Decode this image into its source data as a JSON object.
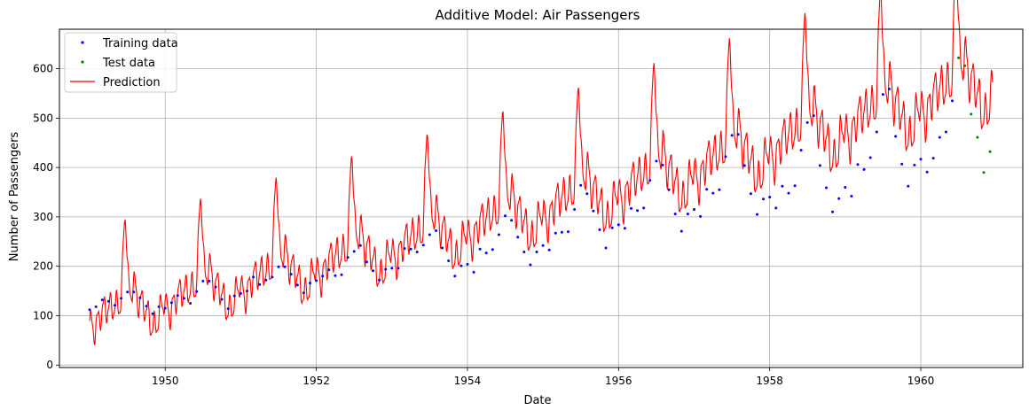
{
  "chart_data": {
    "type": "line",
    "title": "Additive Model: Air Passengers",
    "xlabel": "Date",
    "ylabel": "Number of Passengers",
    "xlim": [
      1948.6,
      1961.35
    ],
    "ylim": [
      -5,
      680
    ],
    "grid": true,
    "legend_position": "upper-left",
    "x_ticks": [
      1950,
      1952,
      1954,
      1956,
      1958,
      1960
    ],
    "x_tick_labels": [
      "1950",
      "1952",
      "1954",
      "1956",
      "1958",
      "1960"
    ],
    "y_ticks": [
      0,
      100,
      200,
      300,
      400,
      500,
      600
    ],
    "y_tick_labels": [
      "0",
      "100",
      "200",
      "300",
      "400",
      "500",
      "600"
    ],
    "legend": [
      {
        "label": "Training data",
        "color": "#0000ff",
        "style": "dot"
      },
      {
        "label": "Test data",
        "color": "#008000",
        "style": "dot"
      },
      {
        "label": "Prediction",
        "color": "#ff0000",
        "style": "line"
      }
    ],
    "series": [
      {
        "name": "Training data",
        "color": "#0000ff",
        "start_year": 1949,
        "start_month": 1,
        "values": [
          112,
          118,
          132,
          129,
          121,
          135,
          148,
          148,
          136,
          119,
          104,
          118,
          115,
          126,
          141,
          135,
          125,
          149,
          170,
          170,
          158,
          133,
          114,
          140,
          145,
          150,
          178,
          163,
          172,
          178,
          199,
          199,
          184,
          162,
          146,
          166,
          171,
          180,
          193,
          181,
          183,
          218,
          230,
          242,
          209,
          191,
          172,
          194,
          196,
          196,
          236,
          235,
          229,
          243,
          264,
          272,
          237,
          211,
          180,
          201,
          204,
          188,
          235,
          227,
          234,
          264,
          302,
          293,
          259,
          229,
          203,
          229,
          242,
          233,
          267,
          269,
          270,
          315,
          364,
          347,
          312,
          274,
          237,
          278,
          284,
          277,
          317,
          313,
          318,
          374,
          413,
          405,
          355,
          306,
          271,
          306,
          315,
          301,
          356,
          348,
          355,
          422,
          465,
          467,
          404,
          347,
          305,
          336,
          340,
          318,
          362,
          348,
          363,
          435,
          491,
          505,
          404,
          359,
          310,
          337,
          360,
          342,
          406,
          396,
          420,
          472,
          548,
          559,
          463,
          407,
          362,
          405,
          417,
          391,
          419,
          461,
          472,
          535
        ]
      },
      {
        "name": "Test data",
        "color": "#008000",
        "start_year": 1960,
        "start_month": 7,
        "values": [
          622,
          606,
          508,
          461,
          390,
          432
        ]
      },
      {
        "name": "Prediction",
        "color": "#ff0000",
        "x_start": 1949.0,
        "x_end": 1960.95,
        "trend": {
          "start": 95,
          "slope": 33,
          "curvature": 0.6
        },
        "seasonal_amplitude": {
          "base": 0.85,
          "growth": 0.035
        },
        "summer_peak": {
          "center": 0.47,
          "height": 210
        },
        "monthly_ripple": 30,
        "weekly_ripple": 10
      }
    ]
  }
}
